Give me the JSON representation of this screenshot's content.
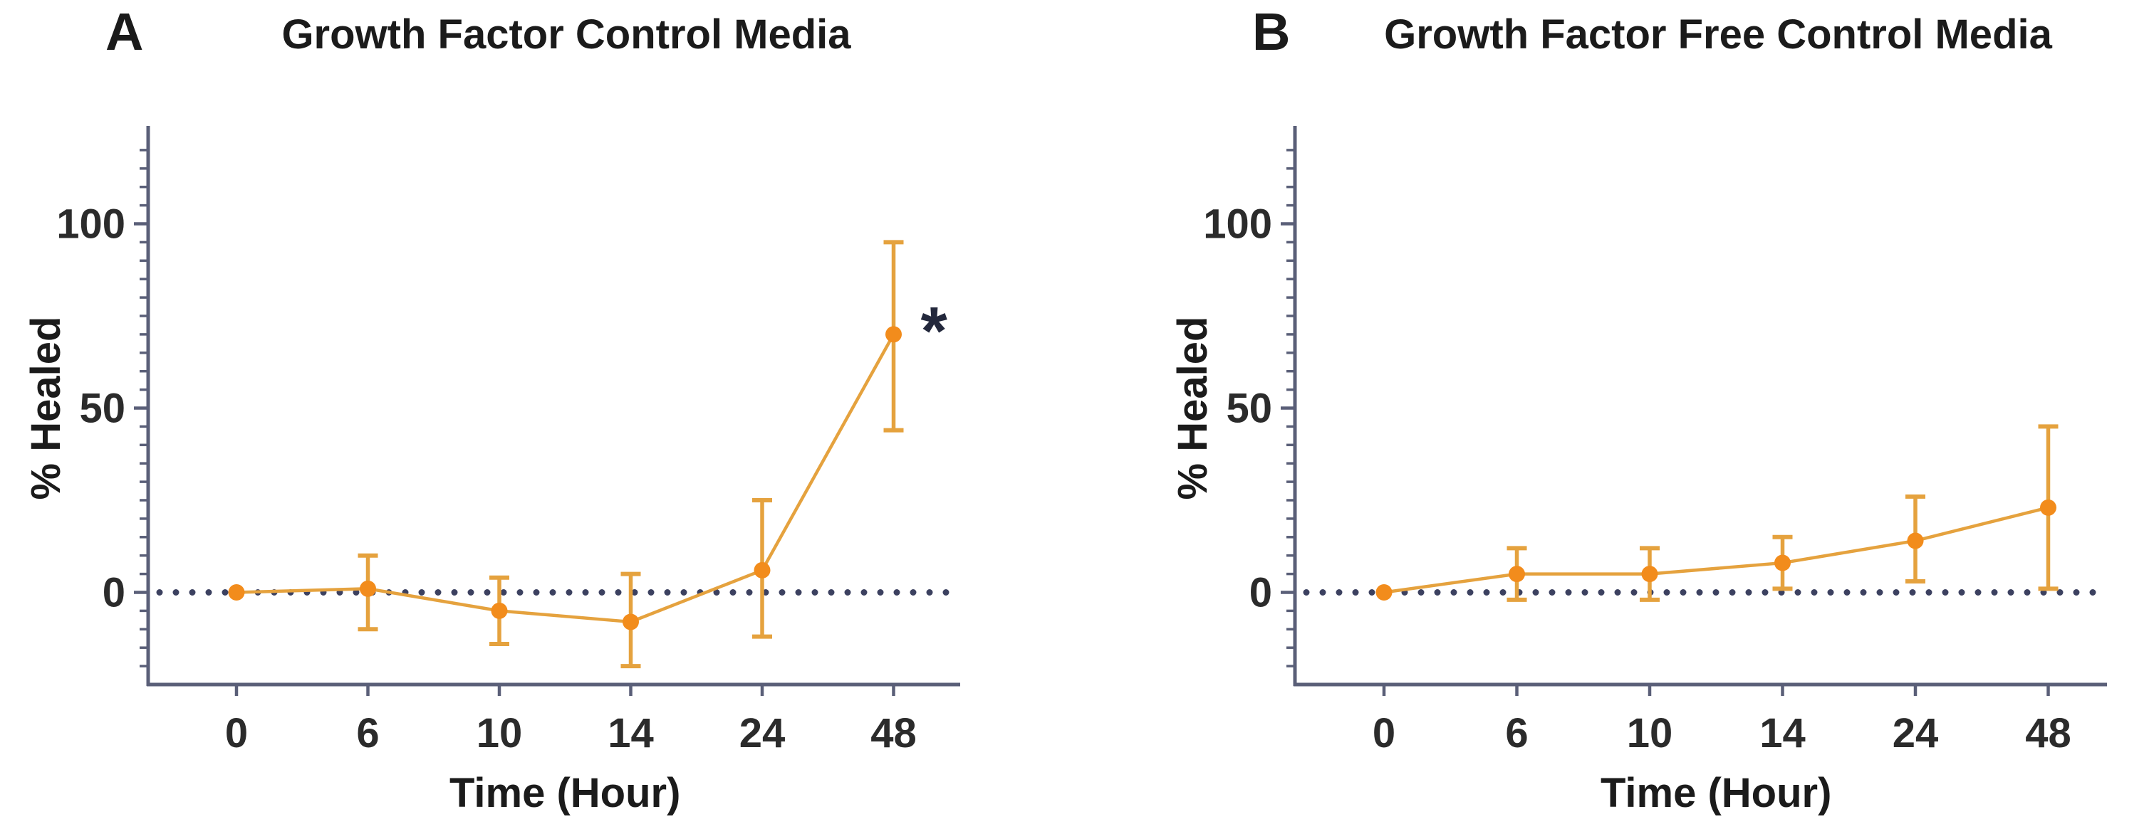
{
  "page": {
    "background": "#ffffff"
  },
  "colors": {
    "marker": "#F28C1C",
    "line": "#E5A23E",
    "error_bar": "#E5A23E",
    "axis": "#5A5F78",
    "dotted_zero_line": "#3C4160",
    "tick_text": "#2B2B2B",
    "title_text": "#1B1B1B",
    "significance": "#23283C"
  },
  "chart_data": [
    {
      "type": "line",
      "panel_label": "A",
      "title": "Growth Factor Control Media",
      "xlabel": "Time (Hour)",
      "ylabel": "% Healed",
      "categories": [
        "0",
        "6",
        "10",
        "14",
        "24",
        "48"
      ],
      "series": [
        {
          "values": [
            0,
            1,
            -5,
            -8,
            6,
            70
          ],
          "error_low": [
            0,
            -10,
            -14,
            -20,
            -12,
            44
          ],
          "error_high": [
            0,
            10,
            4,
            5,
            25,
            95
          ]
        }
      ],
      "ylim": [
        -25,
        125
      ],
      "yticks": [
        0,
        50,
        100
      ],
      "y_minor_step": 5,
      "zero_line_style": "dotted",
      "grid": "off",
      "legend": "none",
      "annotations": [
        {
          "category_index": 5,
          "label": "*"
        }
      ]
    },
    {
      "type": "line",
      "panel_label": "B",
      "title": "Growth Factor Free Control Media",
      "xlabel": "Time (Hour)",
      "ylabel": "% Healed",
      "categories": [
        "0",
        "6",
        "10",
        "14",
        "24",
        "48"
      ],
      "series": [
        {
          "values": [
            0,
            5,
            5,
            8,
            14,
            23
          ],
          "error_low": [
            0,
            -2,
            -2,
            1,
            3,
            1
          ],
          "error_high": [
            0,
            12,
            12,
            15,
            26,
            45
          ]
        }
      ],
      "ylim": [
        -25,
        125
      ],
      "yticks": [
        0,
        50,
        100
      ],
      "y_minor_step": 5,
      "zero_line_style": "dotted",
      "grid": "off",
      "legend": "none",
      "annotations": []
    }
  ]
}
